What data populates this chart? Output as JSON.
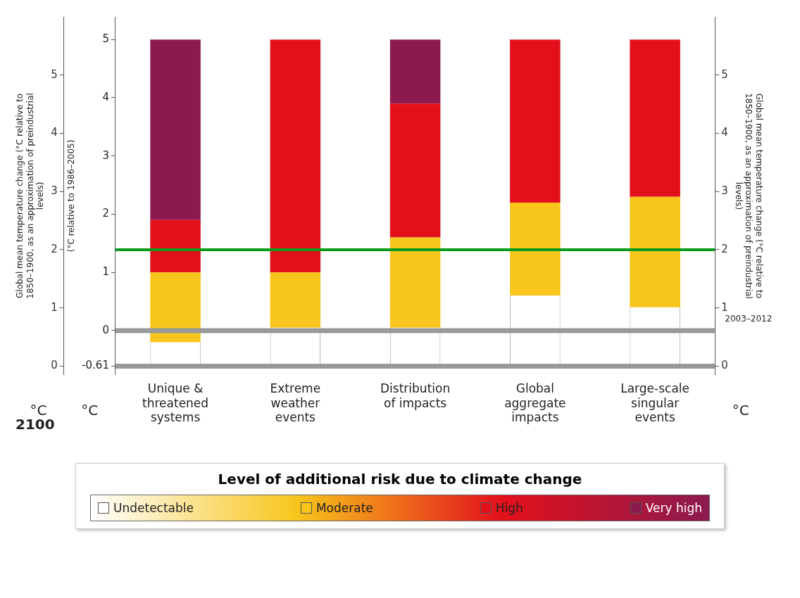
{
  "chart_data": {
    "type": "bar",
    "stacked": true,
    "categories": [
      "Unique & threatened systems",
      "Extreme weather events",
      "Distribution of impacts",
      "Global aggregate impacts",
      "Large-scale singular events"
    ],
    "series": [
      {
        "name": "Undetectable",
        "color": "#ffffff",
        "values": [
          0.41,
          0.66,
          0.66,
          1.21,
          1.01
        ]
      },
      {
        "name": "Moderate",
        "color": "#f7c51b",
        "values": [
          1.2,
          0.95,
          1.55,
          1.6,
          1.9
        ]
      },
      {
        "name": "High",
        "color": "#e3101b",
        "values": [
          0.9,
          4.0,
          2.3,
          2.8,
          2.7
        ]
      },
      {
        "name": "Very high",
        "color": "#8b1a4f",
        "values": [
          3.1,
          0,
          1.1,
          0,
          0
        ]
      }
    ],
    "ylabel": "Global mean temperature change (°C relative to 1850–1900, as an approximation of preindustrial levels)",
    "y2label": "Global mean temperature change (°C relative to 1850–1900, as an approximation of preindustrial levels)",
    "y3label": "(°C relative to 1986–2005)",
    "ylim": [
      -0.15,
      6
    ],
    "yticks": [
      0,
      1,
      2,
      3,
      4,
      5
    ],
    "y2lim": [
      -0.15,
      6
    ],
    "y2ticks": [
      0,
      1,
      2,
      3,
      4,
      5
    ],
    "y3lim": [
      -0.76,
      5.39
    ],
    "y3ticks": [
      -0.61,
      0,
      1,
      2,
      3,
      4,
      5
    ],
    "ref_lines": [
      {
        "axis": "y",
        "value": 2,
        "color": "#0a9a1a"
      },
      {
        "axis": "y3",
        "value": 0,
        "color": "#999999"
      },
      {
        "axis": "y3",
        "value": -0.61,
        "color": "#999999"
      }
    ],
    "annotations": [
      "2100",
      "°C",
      "°C",
      "°C",
      "2003–2012"
    ],
    "legend": "bottom",
    "legend_title": "Level of additional risk due to climate change",
    "grid": false
  }
}
